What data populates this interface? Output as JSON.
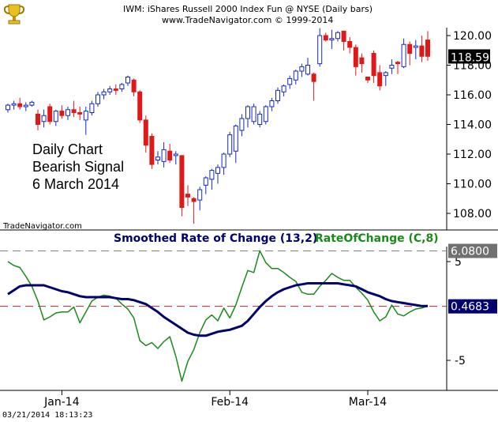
{
  "header": {
    "line1": "IWM:  iShares Russell 2000 Index Fun @ NYSE  (Daily bars)",
    "line2": "www.TradeNavigator.com © 1999-2014"
  },
  "logo_icon": "trophy-icon",
  "annotation": [
    "Daily Chart",
    "Bearish Signal",
    "6 March 2014"
  ],
  "watermark": "TradeNavigator.com",
  "timestamp": "03/21/2014 18:13:23",
  "colors": {
    "bull": "#1428c8",
    "bear": "#e01818",
    "smoothed": "#00006e",
    "roc": "#1a8a1a",
    "ref_high": "#808080",
    "ref_zero": "#d02020"
  },
  "chart_data": [
    {
      "type": "candlestick",
      "title": "IWM:  iShares Russell 2000 Index Fun @ NYSE  (Daily bars)",
      "ylim": [
        107,
        121
      ],
      "y_ticks": [
        108,
        110,
        112,
        114,
        116,
        118,
        120
      ],
      "y_tick_labels": [
        "108.00",
        "110.00",
        "112.00",
        "114.00",
        "116.00",
        "118.00",
        "120.00"
      ],
      "last_price_label": "118.59",
      "last_price": 118.59,
      "bars": [
        [
          115.0,
          115.4,
          114.8,
          115.3
        ],
        [
          115.3,
          115.6,
          115.0,
          115.4
        ],
        [
          115.4,
          115.8,
          115.0,
          115.2
        ],
        [
          115.2,
          115.5,
          114.9,
          115.3
        ],
        [
          115.3,
          115.6,
          115.2,
          115.5
        ],
        [
          114.7,
          115.0,
          113.6,
          114.0
        ],
        [
          114.2,
          115.0,
          113.8,
          114.6
        ],
        [
          115.2,
          115.4,
          114.0,
          114.2
        ],
        [
          114.2,
          115.0,
          113.9,
          114.9
        ],
        [
          114.9,
          115.3,
          114.4,
          114.6
        ],
        [
          114.6,
          115.2,
          114.3,
          115.0
        ],
        [
          115.0,
          115.6,
          114.5,
          114.8
        ],
        [
          114.8,
          115.2,
          114.3,
          114.7
        ],
        [
          114.3,
          115.2,
          113.3,
          114.9
        ],
        [
          114.8,
          115.6,
          114.6,
          115.4
        ],
        [
          115.4,
          116.2,
          115.2,
          116.0
        ],
        [
          116.0,
          116.4,
          115.7,
          116.2
        ],
        [
          116.2,
          116.6,
          116.0,
          116.4
        ],
        [
          116.4,
          116.7,
          116.0,
          116.3
        ],
        [
          116.4,
          116.8,
          116.2,
          116.7
        ],
        [
          116.8,
          117.3,
          116.6,
          117.2
        ],
        [
          117.0,
          117.1,
          115.9,
          116.2
        ],
        [
          116.2,
          116.3,
          114.1,
          114.3
        ],
        [
          114.3,
          114.6,
          112.1,
          112.6
        ],
        [
          113.2,
          113.4,
          111.0,
          111.3
        ],
        [
          111.6,
          112.2,
          111.3,
          111.8
        ],
        [
          111.5,
          112.8,
          111.1,
          112.3
        ],
        [
          112.2,
          112.7,
          111.4,
          111.6
        ],
        [
          111.9,
          112.2,
          111.3,
          112.0
        ],
        [
          111.9,
          111.9,
          107.8,
          108.4
        ],
        [
          109.3,
          109.9,
          108.5,
          109.1
        ],
        [
          109.0,
          109.1,
          107.3,
          108.8
        ],
        [
          108.9,
          109.8,
          108.2,
          109.6
        ],
        [
          109.9,
          110.5,
          109.3,
          110.4
        ],
        [
          110.3,
          111.0,
          109.6,
          110.9
        ],
        [
          110.7,
          111.3,
          110.0,
          111.1
        ],
        [
          111.1,
          112.1,
          110.6,
          112.0
        ],
        [
          112.0,
          113.5,
          111.8,
          113.3
        ],
        [
          112.2,
          114.0,
          111.4,
          113.9
        ],
        [
          113.6,
          114.7,
          113.2,
          114.4
        ],
        [
          114.4,
          115.3,
          113.8,
          115.2
        ],
        [
          114.2,
          115.4,
          114.0,
          115.2
        ],
        [
          114.0,
          114.9,
          113.8,
          114.7
        ],
        [
          114.2,
          115.3,
          114.0,
          115.2
        ],
        [
          115.2,
          115.8,
          114.9,
          115.6
        ],
        [
          115.6,
          116.5,
          115.4,
          116.3
        ],
        [
          116.2,
          116.7,
          115.9,
          116.6
        ],
        [
          116.7,
          117.3,
          116.4,
          117.1
        ],
        [
          117.0,
          117.7,
          116.7,
          117.6
        ],
        [
          117.6,
          118.1,
          117.2,
          117.9
        ],
        [
          117.4,
          118.5,
          117.3,
          118.0
        ],
        [
          117.4,
          117.5,
          115.6,
          116.9
        ],
        [
          118.1,
          120.5,
          117.9,
          120.0
        ],
        [
          120.0,
          120.2,
          119.6,
          119.7
        ],
        [
          119.7,
          120.4,
          119.1,
          119.8
        ],
        [
          119.8,
          120.3,
          119.6,
          120.2
        ],
        [
          120.3,
          120.3,
          119.0,
          119.6
        ],
        [
          119.6,
          119.9,
          118.8,
          119.2
        ],
        [
          119.2,
          119.4,
          117.3,
          117.9
        ],
        [
          118.5,
          118.8,
          117.5,
          118.1
        ],
        [
          117.2,
          117.2,
          116.8,
          117.0
        ],
        [
          118.8,
          119.0,
          116.8,
          117.3
        ],
        [
          117.5,
          118.0,
          116.3,
          116.6
        ],
        [
          117.3,
          117.6,
          116.6,
          117.5
        ],
        [
          117.8,
          118.4,
          117.4,
          118.0
        ],
        [
          118.2,
          118.3,
          117.4,
          118.1
        ],
        [
          117.9,
          119.8,
          117.8,
          119.4
        ],
        [
          119.4,
          119.6,
          118.0,
          118.8
        ],
        [
          119.2,
          119.7,
          118.4,
          119.3
        ],
        [
          119.3,
          120.0,
          118.2,
          118.6
        ],
        [
          119.7,
          120.3,
          118.3,
          118.6
        ]
      ]
    },
    {
      "type": "line",
      "ylim": [
        -7.4,
        7.8
      ],
      "y_ticks": [
        5,
        -5
      ],
      "y_tick_labels": [
        "5",
        "-5"
      ],
      "x_tick_labels": [
        "Jan-14",
        "Feb-14",
        "Mar-14"
      ],
      "x_tick_bars": [
        9,
        37,
        60
      ],
      "reference_lines": [
        {
          "label": "6.0800",
          "value": 6.08
        },
        {
          "label": "0.4683",
          "value": 0.4683
        }
      ],
      "series": [
        {
          "name": "Smoothed Rate of Change (13,2)",
          "values": [
            1.7,
            2.1,
            2.5,
            2.6,
            2.6,
            2.6,
            2.6,
            2.4,
            2.2,
            2.0,
            1.9,
            1.7,
            1.5,
            1.4,
            1.4,
            1.4,
            1.4,
            1.4,
            1.3,
            1.2,
            1.2,
            1.1,
            0.9,
            0.7,
            0.3,
            -0.1,
            -0.6,
            -1.0,
            -1.4,
            -1.8,
            -2.2,
            -2.4,
            -2.5,
            -2.5,
            -2.3,
            -2.1,
            -2.0,
            -1.9,
            -1.7,
            -1.5,
            -1.0,
            -0.3,
            0.4,
            1.0,
            1.5,
            1.9,
            2.2,
            2.4,
            2.6,
            2.7,
            2.8,
            2.8,
            2.8,
            2.8,
            2.8,
            2.8,
            2.7,
            2.6,
            2.5,
            2.2,
            1.9,
            1.7,
            1.5,
            1.2,
            1.0,
            0.9,
            0.8,
            0.7,
            0.6,
            0.5,
            0.5
          ]
        },
        {
          "name": "RateOfChange (C,8)",
          "values": [
            5.0,
            4.6,
            4.4,
            3.5,
            2.5,
            1.0,
            -0.9,
            -0.6,
            -0.2,
            -0.1,
            -0.1,
            0.4,
            -1.2,
            -0.1,
            1.0,
            1.4,
            1.6,
            1.5,
            1.3,
            0.7,
            0.2,
            -0.7,
            -3.0,
            -3.5,
            -3.2,
            -3.8,
            -3.1,
            -2.6,
            -4.6,
            -7.1,
            -5.1,
            -3.9,
            -2.2,
            -0.9,
            -0.4,
            -1.0,
            0.3,
            -0.7,
            0.6,
            2.4,
            4.1,
            3.9,
            6.1,
            4.9,
            4.3,
            4.3,
            3.9,
            3.4,
            3.0,
            1.9,
            1.7,
            1.7,
            2.5,
            3.1,
            3.8,
            3.4,
            3.1,
            3.1,
            2.4,
            1.8,
            1.1,
            -0.1,
            -1.0,
            -0.6,
            0.6,
            -0.3,
            -0.5,
            -0.1,
            0.2,
            0.3,
            0.5
          ]
        }
      ]
    }
  ]
}
